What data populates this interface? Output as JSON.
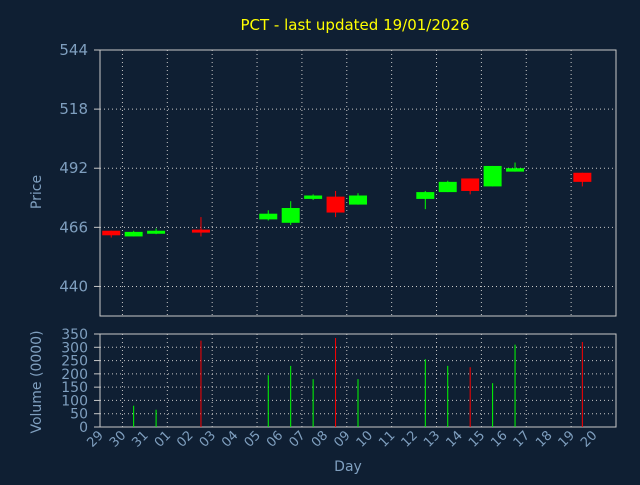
{
  "chart_data": [
    {
      "type": "candlestick",
      "title": "PCT - last updated 19/01/2026",
      "ylabel": "Price",
      "ylim": [
        427,
        544
      ],
      "yticks": [
        "544",
        "518",
        "492",
        "466",
        "440"
      ],
      "ytick_values": [
        544,
        518,
        492,
        466,
        440
      ],
      "grid": true,
      "colors": {
        "up": "#00ff00",
        "down": "#ff0000",
        "grid": "#c8c8c8",
        "background": "#0f1f33",
        "title": "#ffff00",
        "axis_text": "#7f9fbf"
      },
      "candles": [
        {
          "day": "29",
          "open": 464.5,
          "high": 464.5,
          "low": 461.5,
          "close": 462.5
        },
        {
          "day": "30",
          "open": 462.0,
          "high": 464.5,
          "low": 462.0,
          "close": 464.0
        },
        {
          "day": "31",
          "open": 463.5,
          "high": 465.5,
          "low": 463.0,
          "close": 464.5
        },
        {
          "day": "02",
          "open": 465.0,
          "high": 470.5,
          "low": 462.0,
          "close": 464.0
        },
        {
          "day": "05",
          "open": 469.5,
          "high": 473.5,
          "low": 469.0,
          "close": 472.0
        },
        {
          "day": "06",
          "open": 468.0,
          "high": 477.5,
          "low": 467.0,
          "close": 474.5
        },
        {
          "day": "07",
          "open": 478.5,
          "high": 480.5,
          "low": 478.0,
          "close": 480.0
        },
        {
          "day": "08",
          "open": 479.5,
          "high": 482.0,
          "low": 470.5,
          "close": 472.5
        },
        {
          "day": "09",
          "open": 476.0,
          "high": 481.0,
          "low": 476.0,
          "close": 480.0
        },
        {
          "day": "12",
          "open": 478.5,
          "high": 482.0,
          "low": 474.0,
          "close": 481.5
        },
        {
          "day": "13",
          "open": 481.5,
          "high": 486.5,
          "low": 481.5,
          "close": 486.0
        },
        {
          "day": "14",
          "open": 487.5,
          "high": 487.5,
          "low": 480.5,
          "close": 482.0
        },
        {
          "day": "15",
          "open": 484.0,
          "high": 493.0,
          "low": 484.0,
          "close": 493.0
        },
        {
          "day": "16",
          "open": 490.5,
          "high": 494.5,
          "low": 490.5,
          "close": 492.0
        },
        {
          "day": "19",
          "open": 490.0,
          "high": 490.0,
          "low": 484.0,
          "close": 486.0
        }
      ]
    },
    {
      "type": "bar",
      "ylabel": "Volume (0000)",
      "xlabel": "Day",
      "ylim": [
        0,
        350
      ],
      "yticks": [
        "350",
        "300",
        "250",
        "200",
        "150",
        "100",
        "50",
        "0"
      ],
      "ytick_values": [
        350,
        300,
        250,
        200,
        150,
        100,
        50,
        0
      ],
      "categories": [
        "29",
        "30",
        "31",
        "01",
        "02",
        "03",
        "04",
        "05",
        "06",
        "07",
        "08",
        "09",
        "10",
        "11",
        "12",
        "13",
        "14",
        "15",
        "16",
        "17",
        "18",
        "19",
        "20"
      ],
      "bars": [
        {
          "day": "30",
          "value": 80,
          "direction": "up"
        },
        {
          "day": "31",
          "value": 65,
          "direction": "up"
        },
        {
          "day": "02",
          "value": 325,
          "direction": "down"
        },
        {
          "day": "05",
          "value": 195,
          "direction": "up"
        },
        {
          "day": "06",
          "value": 230,
          "direction": "up"
        },
        {
          "day": "07",
          "value": 180,
          "direction": "up"
        },
        {
          "day": "08",
          "value": 335,
          "direction": "down"
        },
        {
          "day": "09",
          "value": 180,
          "direction": "up"
        },
        {
          "day": "12",
          "value": 255,
          "direction": "up"
        },
        {
          "day": "13",
          "value": 230,
          "direction": "up"
        },
        {
          "day": "14",
          "value": 225,
          "direction": "down"
        },
        {
          "day": "15",
          "value": 165,
          "direction": "up"
        },
        {
          "day": "16",
          "value": 310,
          "direction": "up"
        },
        {
          "day": "19",
          "value": 320,
          "direction": "down"
        }
      ]
    }
  ]
}
